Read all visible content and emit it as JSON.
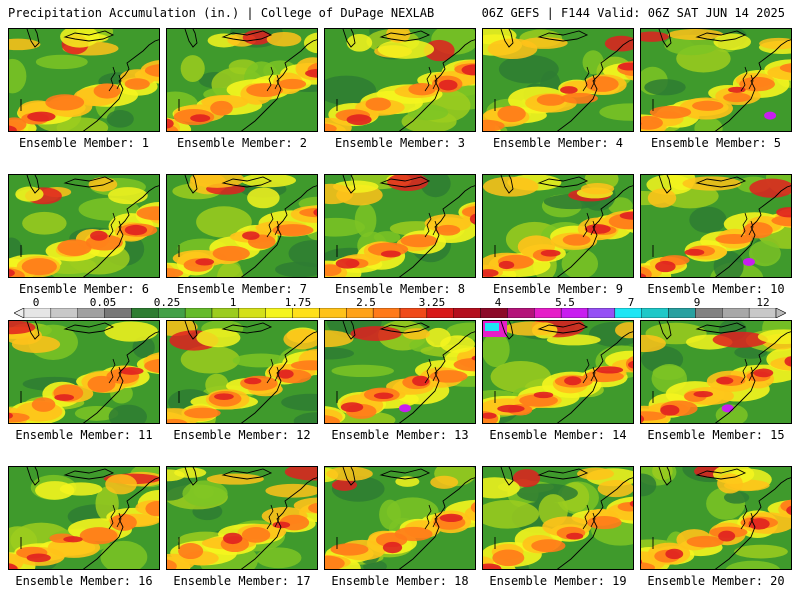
{
  "header": {
    "left_title": "Precipitation Accumulation (in.) | College of DuPage NEXLAB",
    "right_title": "06Z GEFS | F144 Valid: 06Z SAT JUN 14 2025"
  },
  "panels": [
    {
      "label": "Ensemble Member: 1"
    },
    {
      "label": "Ensemble Member: 2"
    },
    {
      "label": "Ensemble Member: 3"
    },
    {
      "label": "Ensemble Member: 4"
    },
    {
      "label": "Ensemble Member: 5"
    },
    {
      "label": "Ensemble Member: 6"
    },
    {
      "label": "Ensemble Member: 7"
    },
    {
      "label": "Ensemble Member: 8"
    },
    {
      "label": "Ensemble Member: 9"
    },
    {
      "label": "Ensemble Member: 10"
    },
    {
      "label": "Ensemble Member: 11"
    },
    {
      "label": "Ensemble Member: 12"
    },
    {
      "label": "Ensemble Member: 13"
    },
    {
      "label": "Ensemble Member: 14"
    },
    {
      "label": "Ensemble Member: 15"
    },
    {
      "label": "Ensemble Member: 16"
    },
    {
      "label": "Ensemble Member: 17"
    },
    {
      "label": "Ensemble Member: 18"
    },
    {
      "label": "Ensemble Member: 19"
    },
    {
      "label": "Ensemble Member: 20"
    }
  ],
  "colorbar": {
    "tick_labels": [
      "0",
      "0.05",
      "0.25",
      "1",
      "1.75",
      "2.5",
      "3.25",
      "4",
      "5.5",
      "7",
      "9",
      "12"
    ],
    "colors": [
      "#e6e6e6",
      "#c8c8c8",
      "#a0a0a0",
      "#787878",
      "#2e7d32",
      "#43a047",
      "#66bb2a",
      "#9ccc1f",
      "#d4e01a",
      "#f5f51e",
      "#ffe01a",
      "#ffc21a",
      "#ffa21a",
      "#ff7a1a",
      "#f04a1a",
      "#d81a1a",
      "#b40f1e",
      "#8c0a28",
      "#b4147a",
      "#e61ec8",
      "#c81ef0",
      "#9650f5",
      "#1ee6f5",
      "#1ec8c8",
      "#28a0a0",
      "#828282",
      "#a8a8a8",
      "#c8c8c8"
    ]
  }
}
